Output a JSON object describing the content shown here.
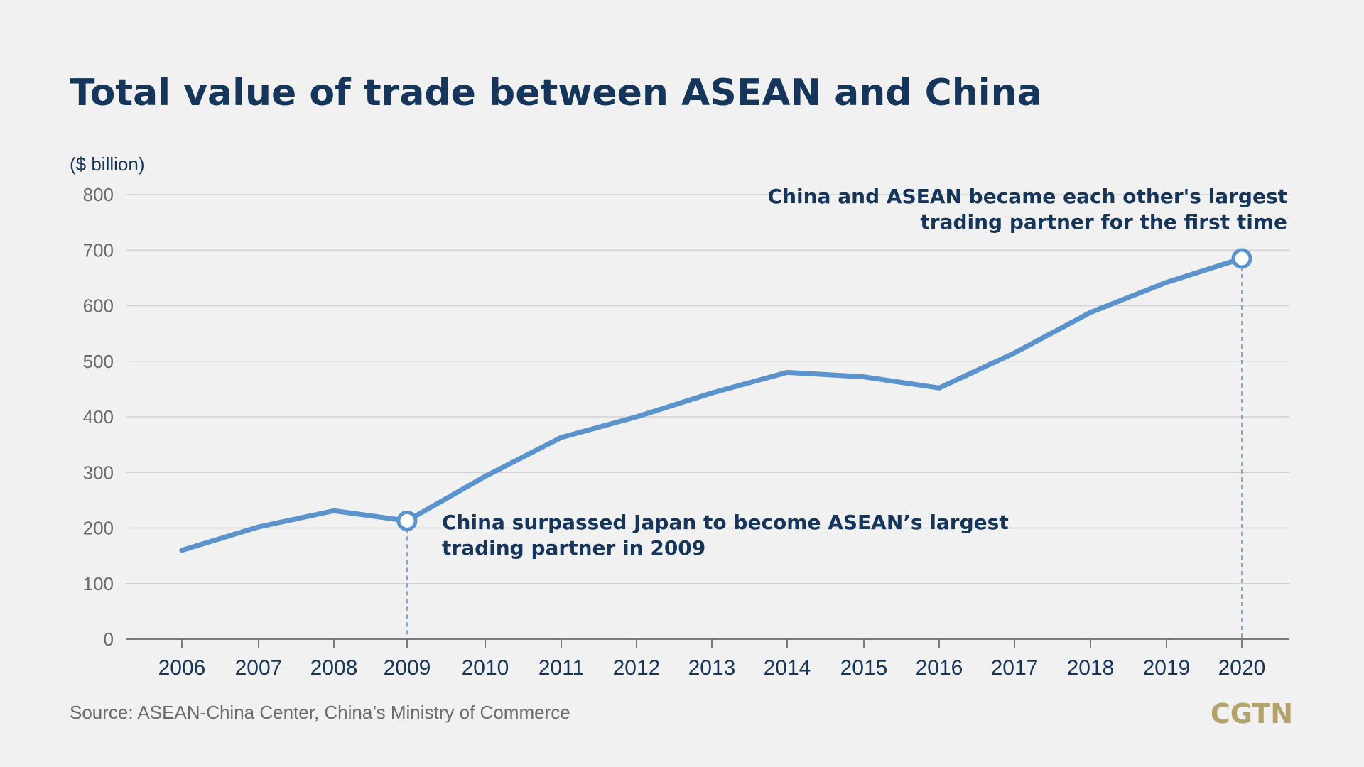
{
  "title": "Total value of trade between ASEAN and China",
  "source": "Source: ASEAN-China Center, China’s Ministry of Commerce",
  "brand": "CGTN",
  "colors": {
    "background": "#f1f1f1",
    "title": "#15355a",
    "line": "#5b94cc",
    "brand": "#b3a26a"
  },
  "chart_data": {
    "type": "line",
    "title": "Total value of trade between ASEAN and China",
    "ylabel": "($ billion)",
    "xlabel": "",
    "ylim": [
      0,
      800
    ],
    "yticks": [
      0,
      100,
      200,
      300,
      400,
      500,
      600,
      700,
      800
    ],
    "grid": true,
    "x": [
      2006,
      2007,
      2008,
      2009,
      2010,
      2011,
      2012,
      2013,
      2014,
      2015,
      2016,
      2017,
      2018,
      2019,
      2020
    ],
    "x_labels": [
      "2006",
      "2007",
      "2008",
      "2009",
      "2010",
      "2011",
      "2012",
      "2013",
      "2014",
      "2015",
      "2016",
      "2017",
      "2018",
      "2019",
      "2020"
    ],
    "series": [
      {
        "values": [
          160,
          202,
          231,
          213,
          293,
          363,
          400,
          443,
          480,
          472,
          452,
          515,
          588,
          642,
          685
        ]
      }
    ],
    "annotations": [
      {
        "x": 2009,
        "y": 213,
        "lines": [
          "China surpassed Japan to become ASEAN’s largest",
          "trading partner in 2009"
        ]
      },
      {
        "x": 2020,
        "y": 685,
        "lines": [
          "China and ASEAN became each other's largest",
          "trading partner for the first time"
        ]
      }
    ]
  }
}
